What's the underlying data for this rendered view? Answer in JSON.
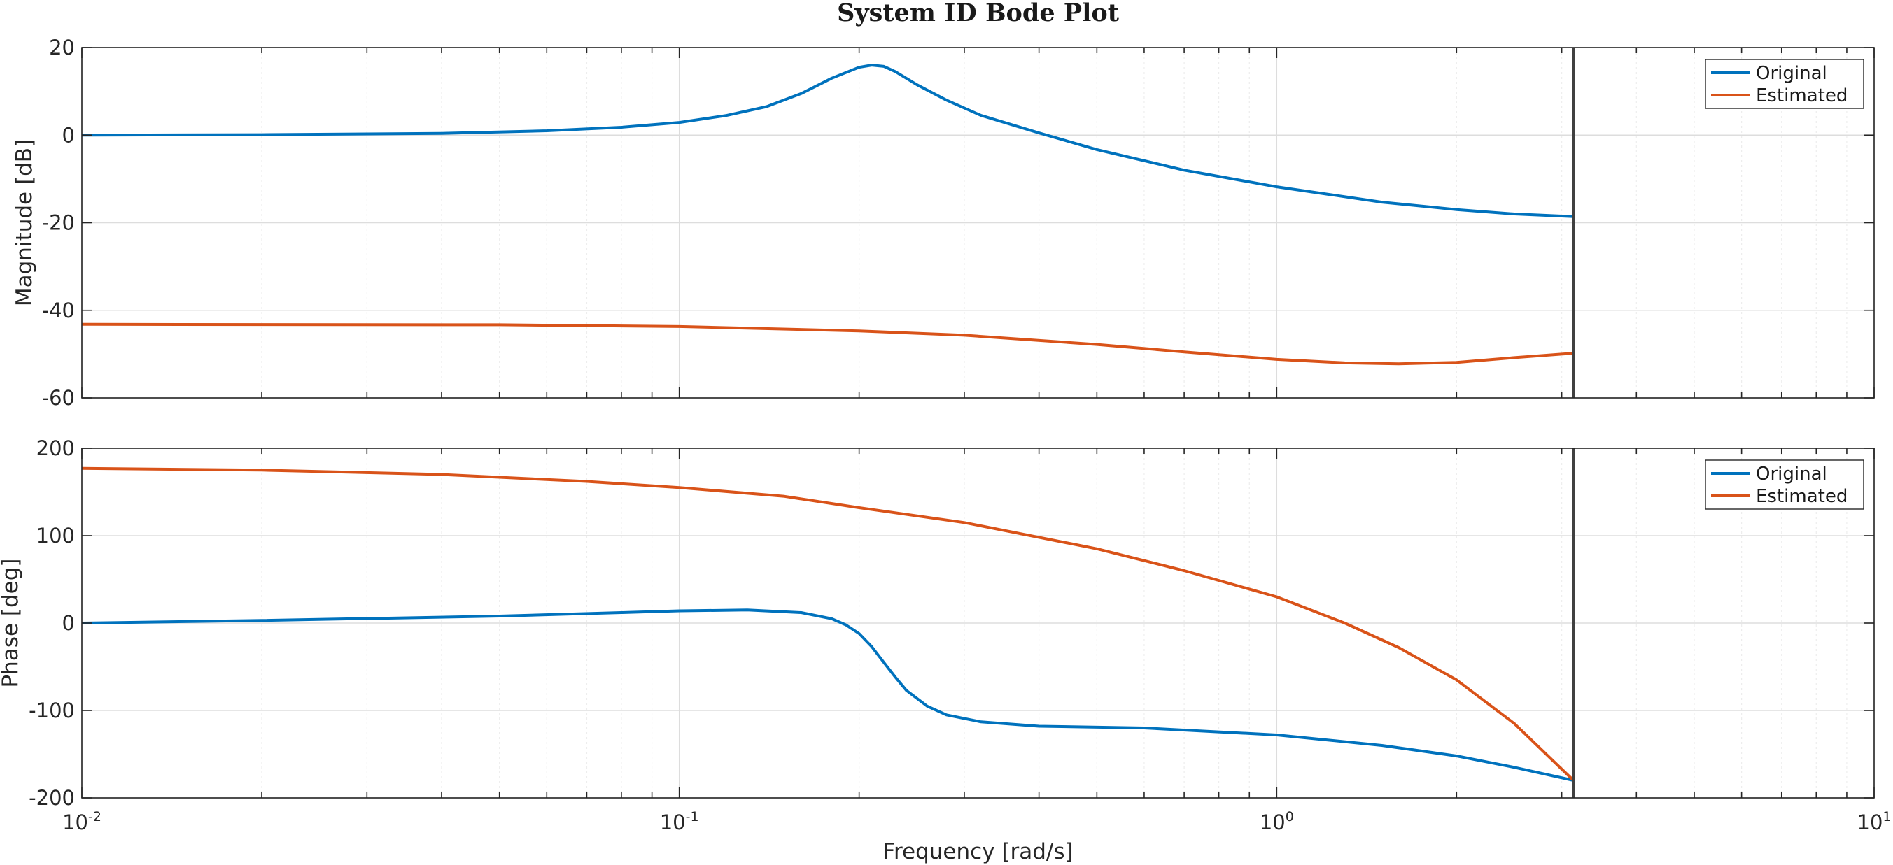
{
  "chart_data": {
    "type": "line",
    "title": "System ID Bode Plot",
    "xlabel": "Frequency [rad/s]",
    "xscale": "log",
    "xlim": [
      0.01,
      10
    ],
    "x_ticks": [
      {
        "base": "10",
        "exp": "-2"
      },
      {
        "base": "10",
        "exp": "-1"
      },
      {
        "base": "10",
        "exp": "0"
      },
      {
        "base": "10",
        "exp": "1"
      }
    ],
    "marker_line_x": 3.14159,
    "grid": true,
    "colors": {
      "original": "#0072BD",
      "estimated": "#D95319",
      "marker": "#404040"
    },
    "subplots": [
      {
        "ylabel": "Magnitude [dB]",
        "ylim": [
          -60,
          20
        ],
        "y_ticks": [
          "20",
          "0",
          "-20",
          "-40",
          "-60"
        ],
        "y_tick_values": [
          20,
          0,
          -20,
          -40,
          -60
        ],
        "legend": {
          "position": "top-right",
          "entries": [
            "Original",
            "Estimated"
          ]
        },
        "series": [
          {
            "name": "Original",
            "x": [
              0.01,
              0.02,
              0.04,
              0.06,
              0.08,
              0.1,
              0.12,
              0.14,
              0.16,
              0.18,
              0.2,
              0.21,
              0.22,
              0.23,
              0.25,
              0.28,
              0.32,
              0.4,
              0.5,
              0.7,
              1.0,
              1.5,
              2.0,
              2.5,
              3.14
            ],
            "y": [
              0,
              0.1,
              0.4,
              1.0,
              1.8,
              2.9,
              4.5,
              6.5,
              9.5,
              13.0,
              15.5,
              16.0,
              15.7,
              14.5,
              11.5,
              8.0,
              4.5,
              0.5,
              -3.3,
              -8.0,
              -11.8,
              -15.3,
              -17.0,
              -18.0,
              -18.6
            ]
          },
          {
            "name": "Estimated",
            "x": [
              0.01,
              0.05,
              0.1,
              0.2,
              0.3,
              0.5,
              0.7,
              1.0,
              1.3,
              1.6,
              2.0,
              2.5,
              3.14
            ],
            "y": [
              -43.2,
              -43.3,
              -43.7,
              -44.7,
              -45.7,
              -47.8,
              -49.5,
              -51.2,
              -52.0,
              -52.2,
              -51.9,
              -50.8,
              -49.8
            ]
          }
        ]
      },
      {
        "ylabel": "Phase [deg]",
        "ylim": [
          -200,
          200
        ],
        "y_ticks": [
          "200",
          "100",
          "0",
          "-100",
          "-200"
        ],
        "y_tick_values": [
          200,
          100,
          0,
          -100,
          -200
        ],
        "legend": {
          "position": "top-right",
          "entries": [
            "Original",
            "Estimated"
          ]
        },
        "series": [
          {
            "name": "Original",
            "x": [
              0.01,
              0.02,
              0.05,
              0.08,
              0.1,
              0.13,
              0.16,
              0.18,
              0.19,
              0.2,
              0.21,
              0.22,
              0.23,
              0.24,
              0.26,
              0.28,
              0.32,
              0.4,
              0.6,
              1.0,
              1.5,
              2.0,
              2.5,
              3.14
            ],
            "y": [
              0,
              3,
              8,
              12,
              14,
              15,
              12,
              5,
              -2,
              -12,
              -27,
              -45,
              -62,
              -77,
              -95,
              -105,
              -113,
              -118,
              -120,
              -128,
              -140,
              -152,
              -165,
              -180
            ]
          },
          {
            "name": "Estimated",
            "x": [
              0.01,
              0.02,
              0.04,
              0.07,
              0.1,
              0.15,
              0.2,
              0.3,
              0.5,
              0.7,
              1.0,
              1.3,
              1.6,
              2.0,
              2.5,
              3.14
            ],
            "y": [
              177,
              175,
              170,
              162,
              155,
              145,
              132,
              115,
              85,
              60,
              30,
              0,
              -28,
              -65,
              -115,
              -180
            ]
          }
        ]
      }
    ]
  }
}
